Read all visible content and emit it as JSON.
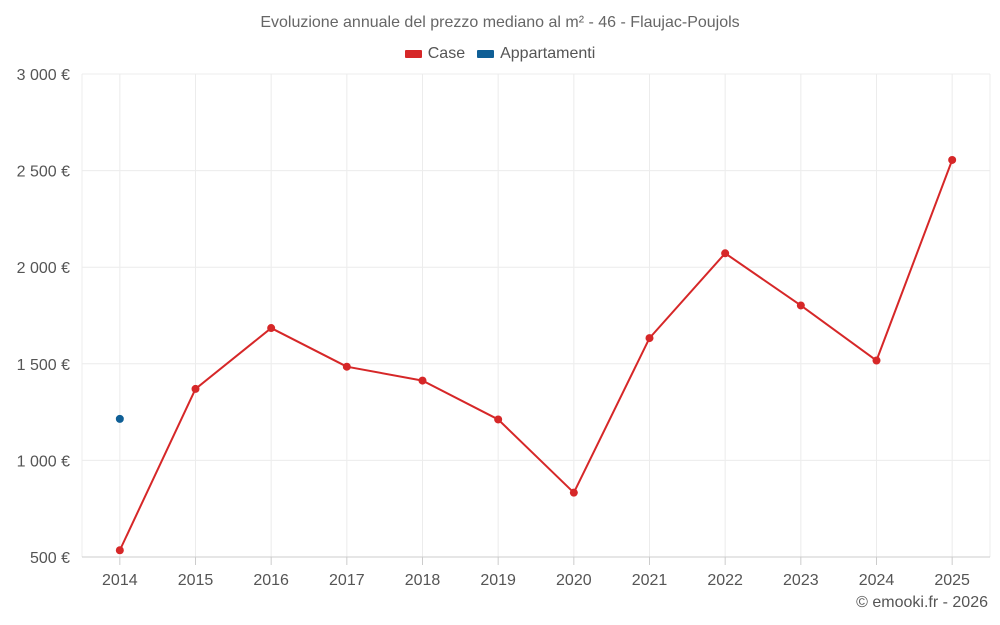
{
  "chart_data": {
    "type": "line",
    "title": "Evoluzione annuale del prezzo mediano al m² - 46 - Flaujac-Poujols",
    "categories": [
      "2014",
      "2015",
      "2016",
      "2017",
      "2018",
      "2019",
      "2020",
      "2021",
      "2022",
      "2023",
      "2024",
      "2025"
    ],
    "series": [
      {
        "name": "Case",
        "color": "#d62728",
        "values": [
          535,
          1370,
          1685,
          1485,
          1413,
          1212,
          833,
          1633,
          2072,
          1802,
          1517,
          2555
        ]
      },
      {
        "name": "Appartamenti",
        "color": "#0f5f96",
        "values": [
          1215,
          null,
          null,
          null,
          null,
          null,
          null,
          null,
          null,
          null,
          null,
          null
        ]
      }
    ],
    "ylim": [
      500,
      3000
    ],
    "yticks": [
      500,
      1000,
      1500,
      2000,
      2500,
      3000
    ],
    "ytick_labels": [
      "500 €",
      "1 000 €",
      "1 500 €",
      "2 000 €",
      "2 500 €",
      "3 000 €"
    ],
    "grid": true,
    "legend_position": "top-center",
    "xlabel": "",
    "ylabel": ""
  },
  "credit": "© emooki.fr - 2026"
}
